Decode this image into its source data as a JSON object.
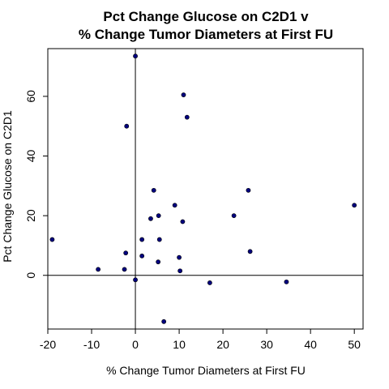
{
  "chart_data": {
    "type": "scatter",
    "title_lines": [
      "Pct Change Glucose on C2D1 v",
      "% Change Tumor Diameters at First FU"
    ],
    "xlabel": "% Change Tumor Diameters at First FU",
    "ylabel": "Pct Change Glucose on C2D1",
    "xlim": [
      -20,
      52
    ],
    "ylim": [
      -18,
      76
    ],
    "xticks": [
      -20,
      -10,
      0,
      10,
      20,
      30,
      40,
      50
    ],
    "yticks": [
      0,
      20,
      40,
      60
    ],
    "reference_lines": {
      "x": 0,
      "y": 0
    },
    "point_color": "#00007f",
    "points": [
      {
        "x": -19,
        "y": 12
      },
      {
        "x": -8.5,
        "y": 2
      },
      {
        "x": -2.5,
        "y": 2
      },
      {
        "x": -2.2,
        "y": 7.5
      },
      {
        "x": -2,
        "y": 50
      },
      {
        "x": 0,
        "y": 73.5
      },
      {
        "x": 0,
        "y": -1.5
      },
      {
        "x": 1.5,
        "y": 6.5
      },
      {
        "x": 1.5,
        "y": 12
      },
      {
        "x": 3.5,
        "y": 19
      },
      {
        "x": 4.2,
        "y": 28.5
      },
      {
        "x": 5.2,
        "y": 4.5
      },
      {
        "x": 5.3,
        "y": 20
      },
      {
        "x": 5.5,
        "y": 12
      },
      {
        "x": 6.5,
        "y": -15.5
      },
      {
        "x": 9,
        "y": 23.5
      },
      {
        "x": 10,
        "y": 6
      },
      {
        "x": 10.2,
        "y": 1.5
      },
      {
        "x": 10.8,
        "y": 18
      },
      {
        "x": 11,
        "y": 60.5
      },
      {
        "x": 11.8,
        "y": 53
      },
      {
        "x": 17,
        "y": -2.5
      },
      {
        "x": 22.5,
        "y": 20
      },
      {
        "x": 25.8,
        "y": 28.5
      },
      {
        "x": 26.2,
        "y": 8
      },
      {
        "x": 34.5,
        "y": -2.2
      },
      {
        "x": 50,
        "y": 23.5
      }
    ]
  }
}
